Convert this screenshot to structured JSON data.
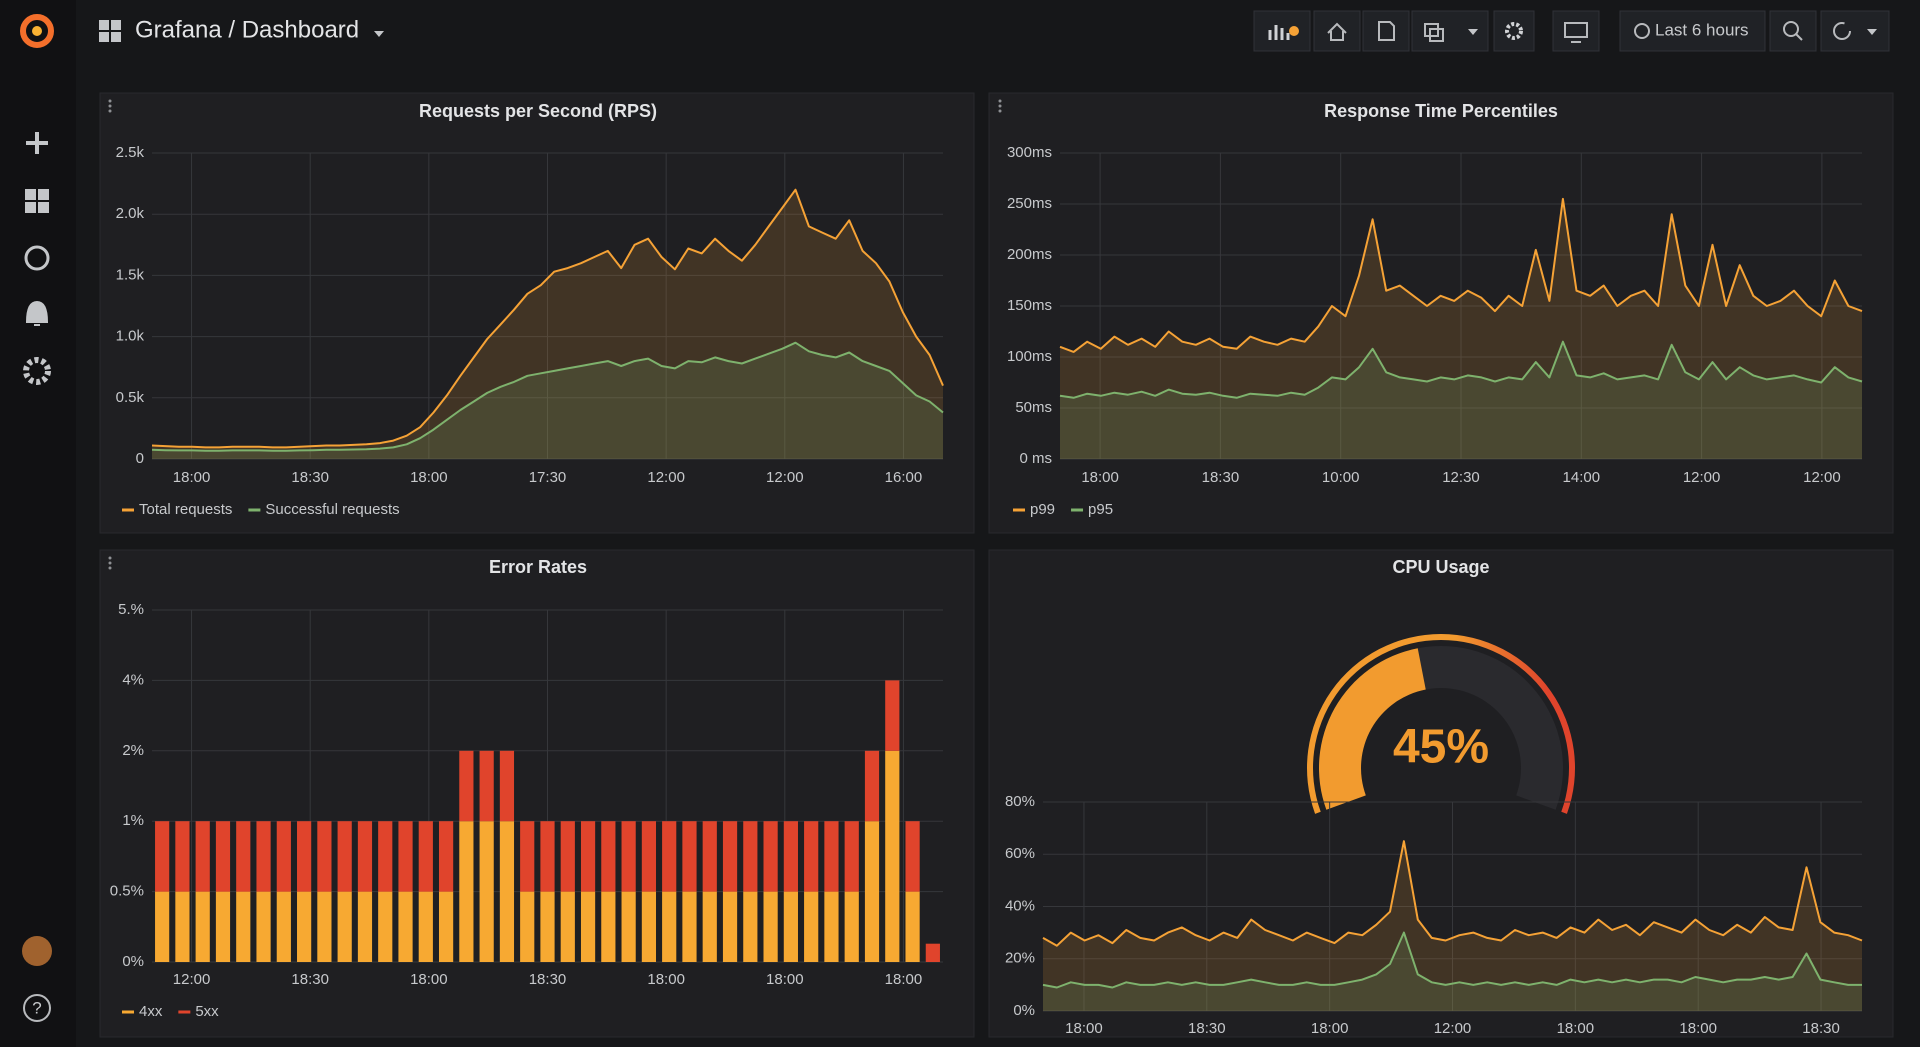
{
  "header": {
    "title": "Grafana / Dashboard",
    "time_range": "Last 6 hours"
  },
  "sidebar": {
    "help": "?"
  },
  "chart_data": [
    {
      "type": "line",
      "title": "Requests per Second (RPS)",
      "grid": true,
      "legend": "bottom-left",
      "x_labels": [
        "18:00",
        "18:30",
        "18:00",
        "17:30",
        "12:00",
        "12:00",
        "16:00"
      ],
      "ylim": [
        0,
        2500
      ],
      "yticks": [
        0,
        {
          "value": 500,
          "label": "0.5k"
        },
        {
          "value": 1000,
          "label": "1.0k"
        },
        {
          "value": 1500,
          "label": "1.5k"
        },
        {
          "value": 2000,
          "label": "2.0k"
        },
        {
          "value": 2500,
          "label": "2.5k"
        }
      ],
      "series": [
        {
          "name": "Total requests",
          "color": "#f5a236",
          "values": [
            110,
            105,
            100,
            100,
            95,
            95,
            100,
            100,
            100,
            95,
            95,
            100,
            105,
            110,
            110,
            115,
            120,
            130,
            150,
            190,
            260,
            380,
            520,
            680,
            830,
            980,
            1100,
            1220,
            1350,
            1420,
            1530,
            1560,
            1600,
            1650,
            1700,
            1560,
            1750,
            1800,
            1650,
            1550,
            1720,
            1680,
            1800,
            1700,
            1620,
            1750,
            1900,
            2050,
            2200,
            1900,
            1850,
            1800,
            1950,
            1700,
            1600,
            1450,
            1200,
            1000,
            850,
            600
          ]
        },
        {
          "name": "Successful requests",
          "color": "#7eb26d",
          "values": [
            75,
            72,
            70,
            70,
            68,
            68,
            70,
            70,
            70,
            68,
            68,
            70,
            72,
            75,
            75,
            78,
            80,
            85,
            95,
            120,
            170,
            240,
            320,
            400,
            470,
            540,
            590,
            630,
            680,
            700,
            720,
            740,
            760,
            780,
            800,
            760,
            800,
            820,
            760,
            740,
            800,
            790,
            830,
            800,
            780,
            820,
            860,
            900,
            950,
            880,
            850,
            830,
            870,
            800,
            760,
            720,
            620,
            520,
            470,
            380
          ]
        }
      ]
    },
    {
      "type": "line",
      "title": "Response Time Percentiles",
      "grid": true,
      "legend": "bottom-left",
      "x_labels": [
        "18:00",
        "18:30",
        "10:00",
        "12:30",
        "14:00",
        "12:00",
        "12:00"
      ],
      "ylim": [
        0,
        300
      ],
      "yticks": [
        {
          "value": 0,
          "label": "0 ms"
        },
        {
          "value": 50,
          "label": "50ms"
        },
        {
          "value": 100,
          "label": "100ms"
        },
        {
          "value": 150,
          "label": "150ms"
        },
        {
          "value": 200,
          "label": "200ms"
        },
        {
          "value": 250,
          "label": "250ms"
        },
        {
          "value": 300,
          "label": "300ms"
        }
      ],
      "series": [
        {
          "name": "p99",
          "color": "#f5a236",
          "values": [
            110,
            105,
            115,
            108,
            120,
            112,
            118,
            110,
            125,
            115,
            112,
            118,
            110,
            108,
            120,
            115,
            112,
            118,
            115,
            130,
            150,
            140,
            180,
            235,
            165,
            170,
            160,
            150,
            160,
            155,
            165,
            158,
            145,
            160,
            150,
            205,
            155,
            255,
            165,
            160,
            170,
            150,
            160,
            165,
            150,
            240,
            170,
            150,
            210,
            150,
            190,
            160,
            150,
            155,
            165,
            150,
            140,
            175,
            150,
            145
          ]
        },
        {
          "name": "p95",
          "color": "#7eb26d",
          "values": [
            62,
            60,
            64,
            62,
            65,
            63,
            66,
            62,
            68,
            64,
            63,
            65,
            62,
            60,
            64,
            63,
            62,
            65,
            63,
            70,
            80,
            78,
            90,
            108,
            85,
            80,
            78,
            76,
            80,
            78,
            82,
            80,
            76,
            80,
            78,
            95,
            80,
            115,
            82,
            80,
            84,
            78,
            80,
            82,
            78,
            112,
            85,
            78,
            95,
            78,
            90,
            82,
            78,
            80,
            82,
            78,
            75,
            90,
            80,
            76
          ]
        }
      ]
    },
    {
      "type": "bar",
      "stacked": true,
      "title": "Error Rates",
      "grid": true,
      "legend": "bottom-left",
      "x_labels": [
        "12:00",
        "18:30",
        "18:00",
        "18:30",
        "18:00",
        "18:00",
        "18:00"
      ],
      "ylim": [
        0,
        5
      ],
      "yticks": [
        {
          "value": 0,
          "label": "0%"
        },
        {
          "value": 0.5,
          "label": "0.5%"
        },
        {
          "value": 1,
          "label": "1%"
        },
        {
          "value": 2,
          "label": "2%"
        },
        {
          "value": 4,
          "label": "4%"
        },
        {
          "value": 5,
          "label": "5.%"
        }
      ],
      "series": [
        {
          "name": "4xx",
          "color": "#f7a932",
          "values": [
            0.5,
            0.5,
            0.5,
            0.5,
            0.5,
            0.5,
            0.5,
            0.5,
            0.5,
            0.5,
            0.5,
            0.5,
            0.5,
            0.5,
            0.5,
            1,
            1,
            1,
            0.5,
            0.5,
            0.5,
            0.5,
            0.5,
            0.5,
            0.5,
            0.5,
            0.5,
            0.5,
            0.5,
            0.5,
            0.5,
            0.5,
            0.5,
            0.5,
            0.5,
            1,
            2,
            0.5,
            0
          ]
        },
        {
          "name": "5xx",
          "color": "#e0442c",
          "values": [
            0.5,
            0.5,
            0.5,
            0.5,
            0.5,
            0.5,
            0.5,
            0.5,
            0.5,
            0.5,
            0.5,
            0.5,
            0.5,
            0.5,
            0.5,
            1,
            1,
            1,
            0.5,
            0.5,
            0.5,
            0.5,
            0.5,
            0.5,
            0.5,
            0.5,
            0.5,
            0.5,
            0.5,
            0.5,
            0.5,
            0.5,
            0.5,
            0.5,
            0.5,
            1,
            2,
            0.5,
            0.13
          ]
        }
      ]
    },
    {
      "type": "gauge",
      "title": "CPU Usage",
      "ylim": [
        0,
        100
      ],
      "values": [
        45
      ],
      "value_labels": [
        "45%"
      ],
      "color": "#f29b2f",
      "threshold_color": "#e0442c"
    },
    {
      "type": "line",
      "grid": true,
      "x_labels": [
        "18:00",
        "18:30",
        "18:00",
        "12:00",
        "18:00",
        "18:00",
        "18:30"
      ],
      "ylim": [
        0,
        80
      ],
      "yticks": [
        {
          "value": 0,
          "label": "0%"
        },
        {
          "value": 20,
          "label": "20%"
        },
        {
          "value": 40,
          "label": "40%"
        },
        {
          "value": 60,
          "label": "60%"
        },
        {
          "value": 80,
          "label": "80%"
        }
      ],
      "series": [
        {
          "color": "#f5a236",
          "values": [
            28,
            25,
            30,
            27,
            29,
            26,
            31,
            28,
            27,
            30,
            32,
            29,
            27,
            30,
            28,
            35,
            31,
            29,
            27,
            30,
            28,
            26,
            30,
            29,
            33,
            38,
            65,
            35,
            28,
            27,
            29,
            30,
            28,
            27,
            31,
            29,
            30,
            28,
            32,
            30,
            35,
            31,
            33,
            29,
            34,
            32,
            30,
            35,
            31,
            29,
            33,
            30,
            36,
            32,
            31,
            55,
            34,
            30,
            29,
            27
          ]
        },
        {
          "color": "#7eb26d",
          "values": [
            10,
            9,
            11,
            10,
            10,
            9,
            11,
            10,
            10,
            11,
            10,
            11,
            10,
            10,
            11,
            12,
            11,
            10,
            10,
            11,
            10,
            10,
            11,
            12,
            14,
            18,
            30,
            14,
            11,
            10,
            11,
            10,
            11,
            10,
            11,
            10,
            11,
            10,
            12,
            11,
            12,
            11,
            12,
            11,
            12,
            12,
            11,
            13,
            12,
            11,
            12,
            12,
            13,
            12,
            13,
            22,
            12,
            11,
            10,
            10
          ]
        }
      ]
    }
  ]
}
